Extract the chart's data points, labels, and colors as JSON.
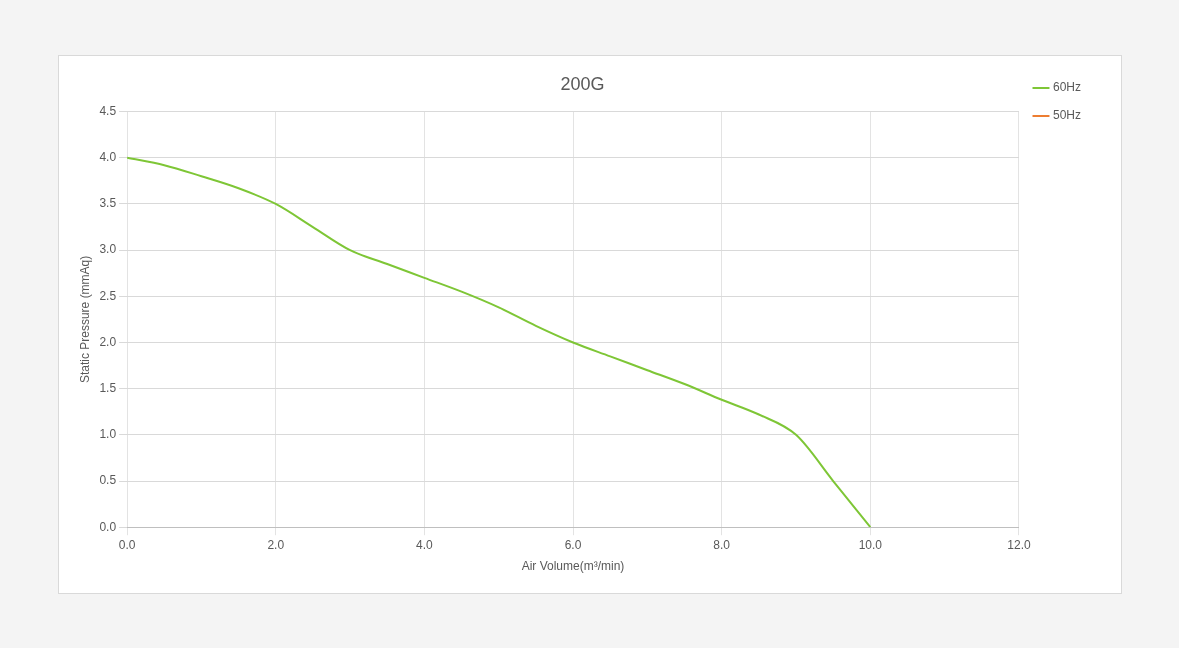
{
  "chart_data": {
    "type": "line",
    "title": "200G",
    "xlabel": "Air Volume(m³/min)",
    "ylabel": "Static Pressure (mmAq)",
    "xlim": [
      0,
      12
    ],
    "xticks": [
      {
        "value": 0,
        "label": "0.0"
      },
      {
        "value": 2,
        "label": "2.0"
      },
      {
        "value": 4,
        "label": "4.0"
      },
      {
        "value": 6,
        "label": "6.0"
      },
      {
        "value": 8,
        "label": "8.0"
      },
      {
        "value": 10,
        "label": "10.0"
      },
      {
        "value": 12,
        "label": "12.0"
      }
    ],
    "ylim": [
      0,
      4.5
    ],
    "yticks": [
      {
        "value": 0,
        "label": "0.0"
      },
      {
        "value": 0.5,
        "label": "0.5"
      },
      {
        "value": 1,
        "label": "1.0"
      },
      {
        "value": 1.5,
        "label": "1.5"
      },
      {
        "value": 2,
        "label": "2.0"
      },
      {
        "value": 2.5,
        "label": "2.5"
      },
      {
        "value": 3,
        "label": "3.0"
      },
      {
        "value": 3.5,
        "label": "3.5"
      },
      {
        "value": 4,
        "label": "4.0"
      },
      {
        "value": 4.5,
        "label": "4.5"
      }
    ],
    "x": [
      0,
      0.5,
      1,
      1.5,
      2,
      2.5,
      3,
      3.5,
      4,
      4.5,
      5,
      5.5,
      6,
      6.5,
      7,
      7.5,
      8,
      8.5,
      9,
      9.5,
      10
    ],
    "series": [
      {
        "name": "60Hz",
        "color": "#7ec636",
        "values": [
          4.0,
          3.92,
          3.8,
          3.67,
          3.5,
          3.25,
          3.0,
          2.85,
          2.7,
          2.55,
          2.38,
          2.18,
          2.0,
          1.85,
          1.7,
          1.55,
          1.38,
          1.22,
          1.0,
          0.5,
          0
        ]
      },
      {
        "name": "50Hz",
        "color": "#ed7d31",
        "values": [
          null,
          null,
          null,
          null,
          null,
          null,
          null,
          null,
          null,
          null,
          null,
          null,
          null,
          null,
          null,
          null,
          null,
          null,
          null,
          null,
          null
        ]
      }
    ],
    "grid": true,
    "legend": "top right",
    "marker": "none",
    "line_style": "solid"
  }
}
